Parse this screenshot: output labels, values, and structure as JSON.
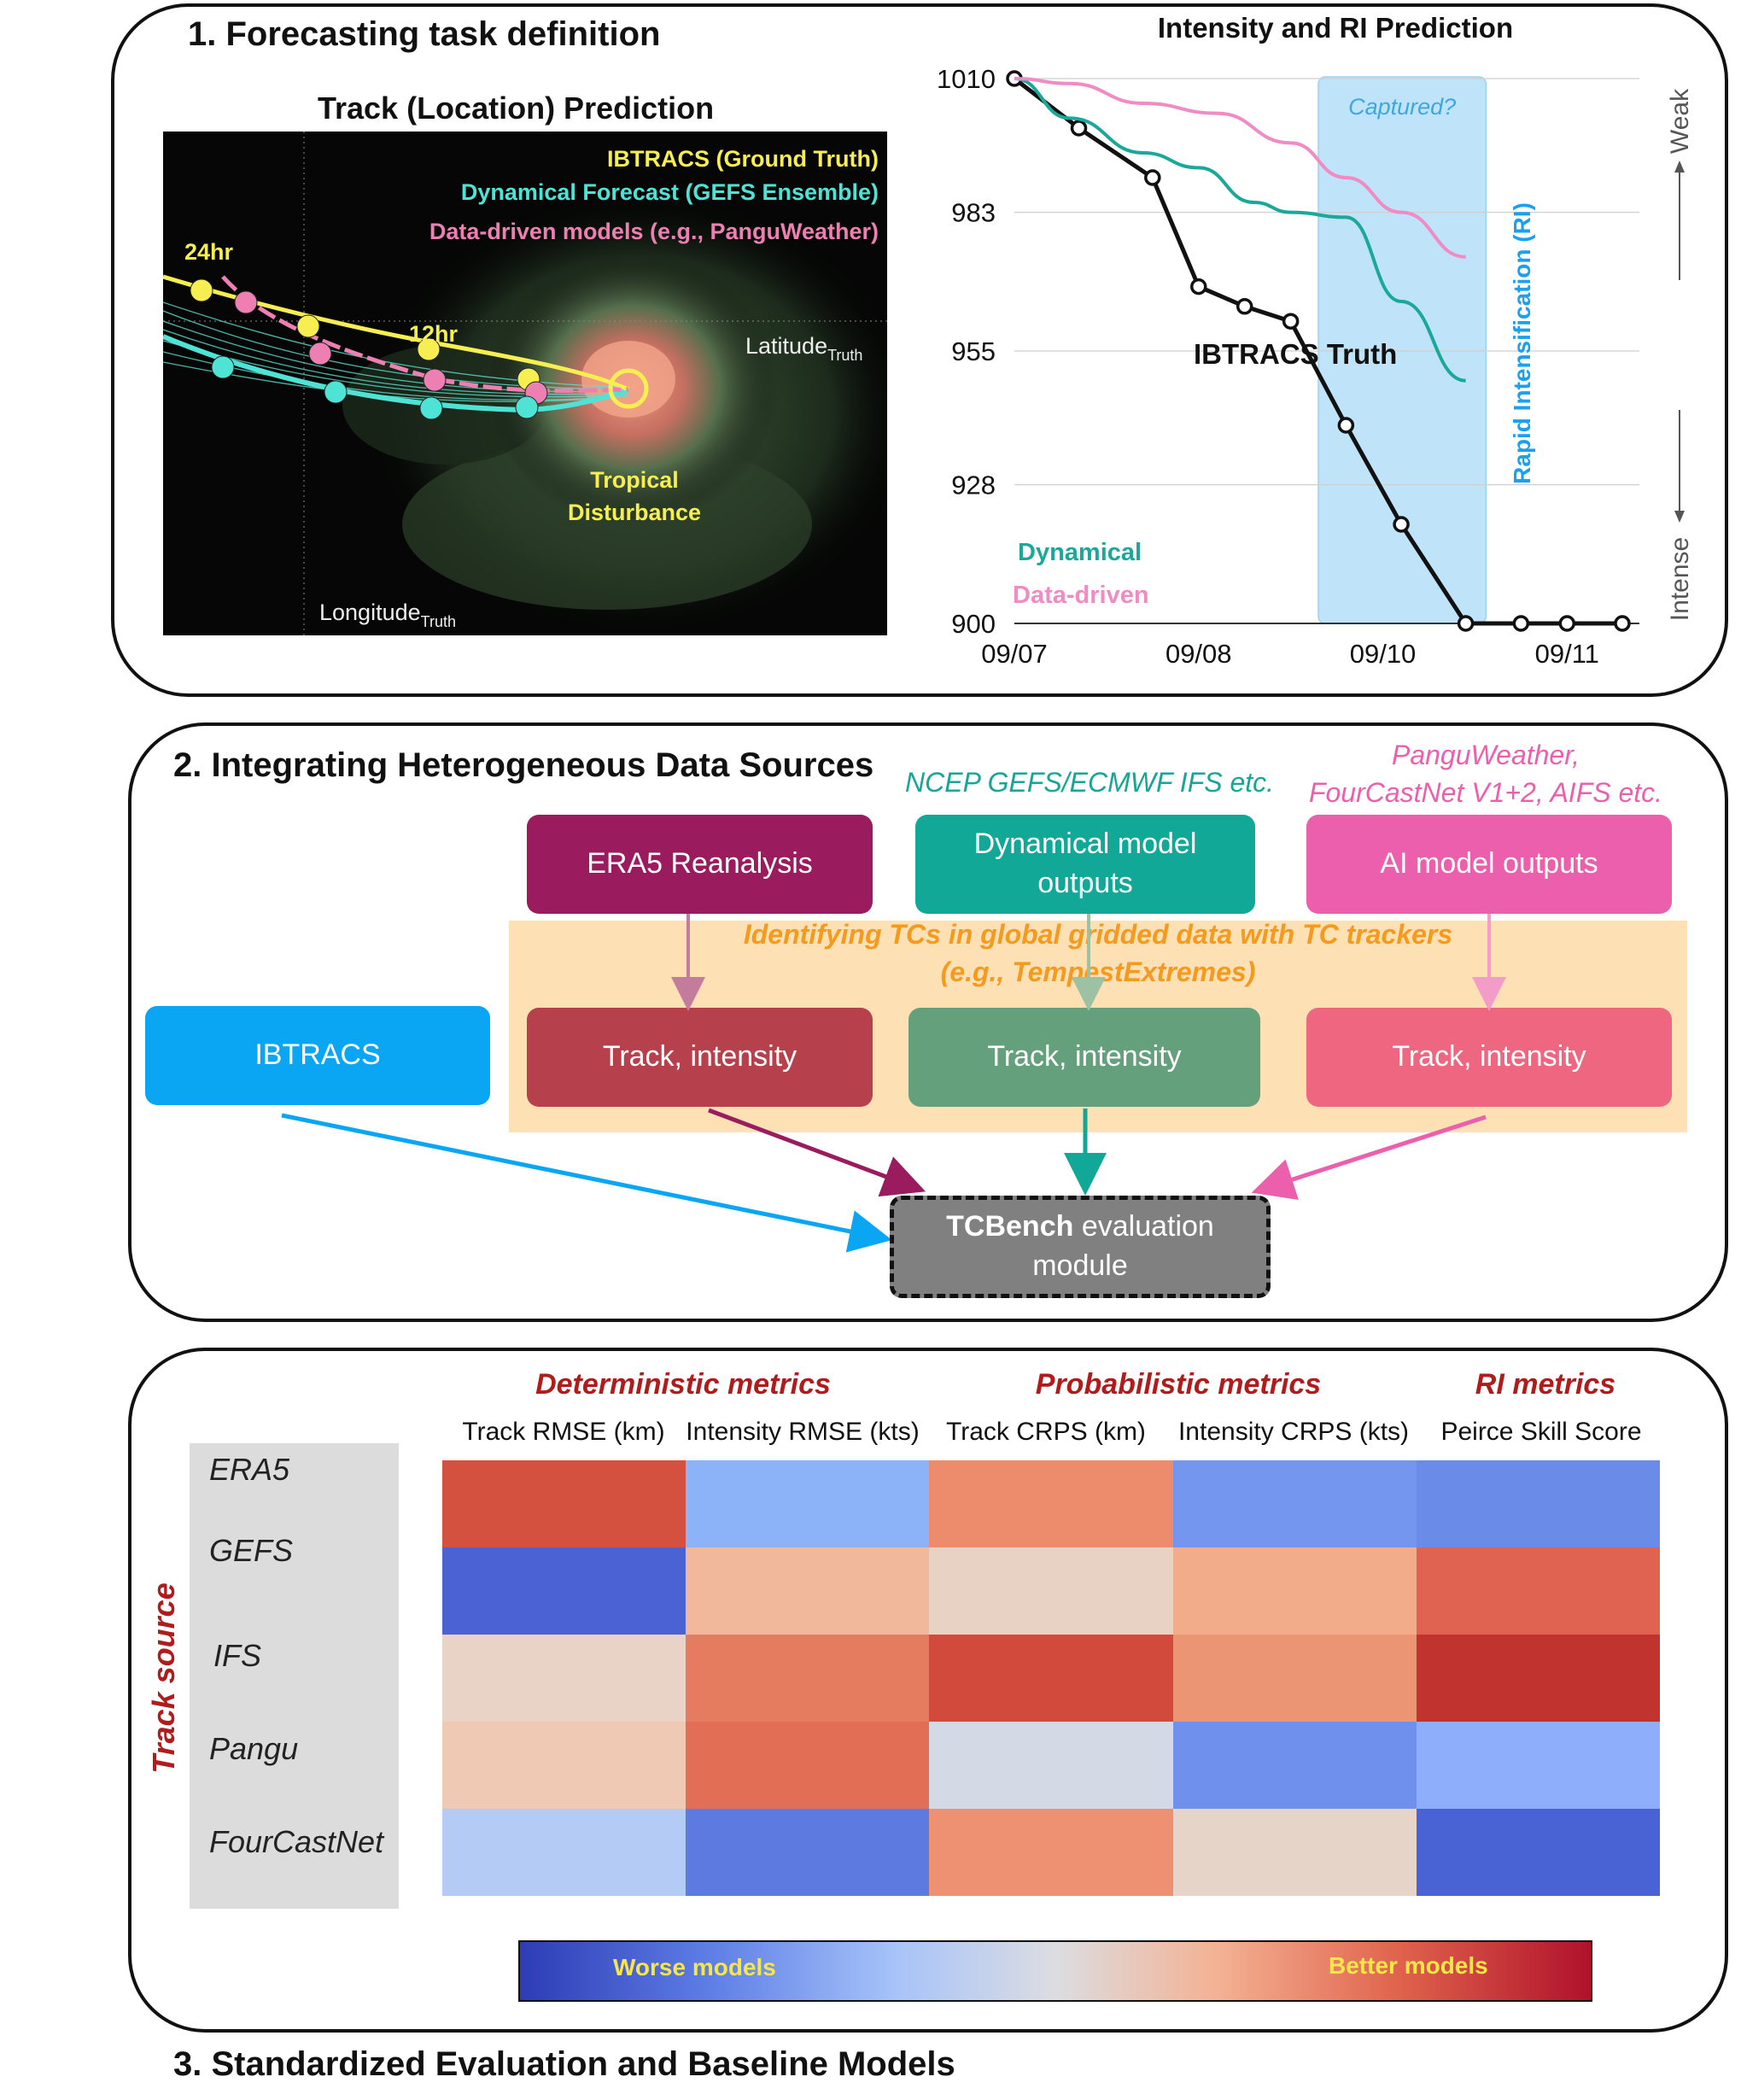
{
  "panel1": {
    "title": "1. Forecasting task definition",
    "track": {
      "title": "Track (Location) Prediction",
      "legend": [
        "IBTRACS (Ground Truth)",
        "Dynamical Forecast (GEFS Ensemble)",
        "Data-driven models (e.g., PanguWeather)"
      ],
      "label_24hr": "24hr",
      "label_12hr": "12hr",
      "latitude": "Latitude",
      "longitude": "Longitude",
      "truth_sub": "Truth",
      "disturbance_line1": "Tropical",
      "disturbance_line2": "Disturbance",
      "colors": {
        "truth": "#f7ef52",
        "dynamical": "#4fe3d6",
        "datadriven": "#ee7fb2"
      }
    }
  },
  "chart_data": {
    "type": "line",
    "title": "Intensity and RI Prediction",
    "xlabel": "",
    "ylabel": "",
    "x_ticks": [
      "09/07",
      "09/08",
      "09/10",
      "09/11"
    ],
    "y_ticks": [
      1010,
      983,
      955,
      928,
      900
    ],
    "ylim": [
      900,
      1010
    ],
    "grid": "horizontal",
    "series": [
      {
        "name": "IBTRACS Truth",
        "color": "#111111",
        "x": [
          0,
          0.35,
          0.75,
          1.0,
          1.25,
          1.5,
          1.8,
          2.1,
          2.45,
          2.75,
          3.0,
          3.3
        ],
        "values": [
          1010,
          1000,
          990,
          968,
          964,
          961,
          940,
          920,
          900,
          900,
          900,
          900
        ]
      },
      {
        "name": "Dynamical",
        "color": "#1ba899",
        "x": [
          0,
          0.3,
          0.7,
          1.0,
          1.3,
          1.5,
          1.8,
          2.1,
          2.45
        ],
        "values": [
          1010,
          1002,
          995,
          992,
          985,
          983,
          982,
          965,
          949
        ]
      },
      {
        "name": "Data-driven",
        "color": "#f08bc3",
        "x": [
          0,
          0.3,
          0.7,
          1.1,
          1.5,
          1.8,
          2.1,
          2.45
        ],
        "values": [
          1010,
          1009,
          1005,
          1003,
          997,
          990,
          983,
          974
        ]
      }
    ],
    "truth_label": "IBTRACS Truth",
    "legend": [
      {
        "label": "Dynamical",
        "color": "#1ba899"
      },
      {
        "label": "Data-driven",
        "color": "#f08bc3"
      }
    ],
    "ri_window_label": "Captured?",
    "ri_axis_label": "Rapid Intensification (RI)",
    "weak_label": "Weak",
    "intense_label": "Intense"
  },
  "panel2": {
    "title": "2. Integrating Heterogeneous Data Sources",
    "dyn_sources": "NCEP GEFS/ECMWF IFS etc.",
    "ai_sources_line1": "PanguWeather,",
    "ai_sources_line2": "FourCastNet V1+2, AIFS etc.",
    "era5": "ERA5 Reanalysis",
    "dyn_outputs_line1": "Dynamical model",
    "dyn_outputs_line2": "outputs",
    "ai_outputs": "AI model outputs",
    "tracker_line1": "Identifying TCs in global gridded data with TC trackers",
    "tracker_line2": "(e.g., TempestExtremes)",
    "ibtracs": "IBTRACS",
    "track_intensity": "Track, intensity",
    "tcbench_bold": "TCBench",
    "tcbench_rest": " evaluation",
    "tcbench_line2": "module",
    "colors": {
      "era5": "#9a1b5e",
      "dyn": "#11a898",
      "ai": "#ec5fac",
      "ibtracs": "#0aa6f4",
      "track_era5": "#b6404c",
      "track_dyn": "#64a07c",
      "track_ai": "#ee6680",
      "tracker_band": "#fde0b4",
      "tracker_text": "#f39a1f",
      "tcbench": "#808080"
    }
  },
  "panel3": {
    "title": "3. Standardized Evaluation and Baseline Models",
    "groups": [
      "Deterministic metrics",
      "Probabilistic metrics",
      "RI metrics"
    ],
    "columns": [
      "Track RMSE (km)",
      "Intensity RMSE (kts)",
      "Track CRPS (km)",
      "Intensity CRPS (kts)",
      "Peirce Skill Score"
    ],
    "rows": [
      "ERA5",
      "GEFS",
      "IFS",
      "Pangu",
      "FourCastNet"
    ],
    "row_axis_label": "Track source",
    "cell_colors": [
      [
        "#d4513f",
        "#8cb2f8",
        "#ec8c6c",
        "#7596ee",
        "#6b8be8"
      ],
      [
        "#4a62d3",
        "#f2b89b",
        "#e8d2c4",
        "#f3ac8a",
        "#df6350"
      ],
      [
        "#e8d3c6",
        "#e57c60",
        "#d14a3c",
        "#ec9574",
        "#c0332f"
      ],
      [
        "#efc9b4",
        "#e26f55",
        "#d3dae6",
        "#6f90ec",
        "#8eaefb"
      ],
      [
        "#b4cbf6",
        "#5c7ae0",
        "#ee9072",
        "#e6d4c8",
        "#4a63d4"
      ]
    ],
    "colorbar": {
      "left": "Worse models",
      "right": "Better models",
      "text_color": "#f7e649"
    }
  }
}
